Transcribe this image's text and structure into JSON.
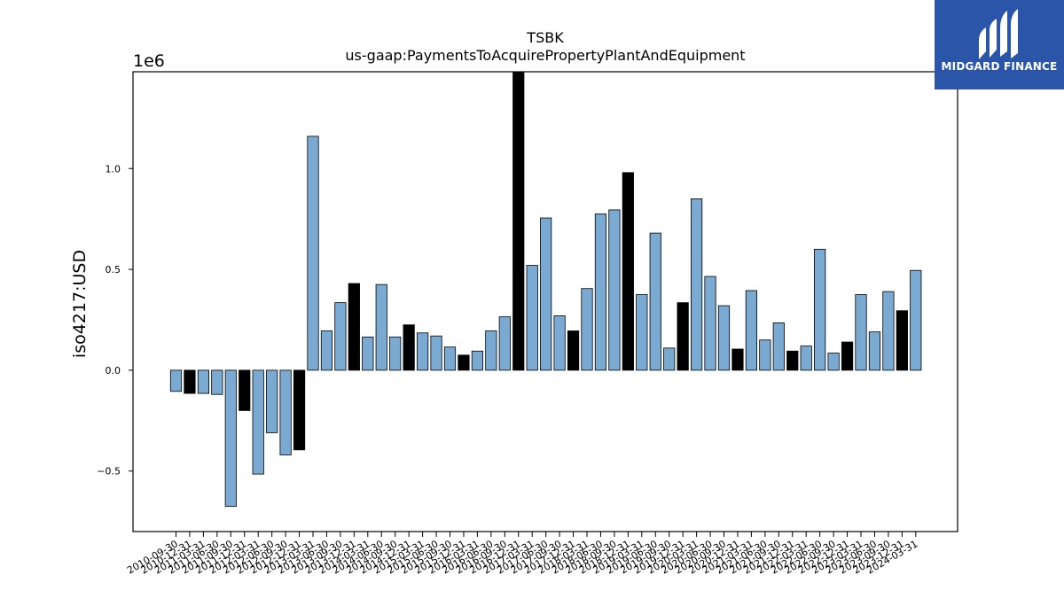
{
  "chart_data": {
    "type": "bar",
    "title": "TSBK",
    "subtitle": "us-gaap:PaymentsToAcquirePropertyPlantAndEquipment",
    "ylabel": "iso4217:USD",
    "xlabel": "",
    "scale_label": "1e6",
    "ylim": [
      -0.8,
      1.48
    ],
    "yticks": [
      -0.5,
      0.0,
      0.5,
      1.0
    ],
    "ytick_labels": [
      "−0.5",
      "0.0",
      "0.5",
      "1.0"
    ],
    "grid": false,
    "colors": {
      "annual": "#000000",
      "quarterly": "#7aaad2"
    },
    "categories": [
      "2010-09-30",
      "2010-12-31",
      "2011-03-31",
      "2011-06-30",
      "2011-09-30",
      "2011-12-31",
      "2012-03-31",
      "2012-06-30",
      "2012-09-30",
      "2012-12-31",
      "2013-03-31",
      "2013-06-30",
      "2013-09-30",
      "2013-12-31",
      "2014-03-31",
      "2014-06-30",
      "2014-09-30",
      "2014-12-31",
      "2015-03-31",
      "2015-06-30",
      "2015-09-30",
      "2015-12-31",
      "2016-03-31",
      "2016-06-30",
      "2016-09-30",
      "2016-12-31",
      "2017-03-31",
      "2017-06-30",
      "2017-09-30",
      "2017-12-31",
      "2018-03-31",
      "2018-06-30",
      "2018-09-30",
      "2018-12-31",
      "2019-03-31",
      "2019-06-30",
      "2019-09-30",
      "2019-12-31",
      "2020-03-31",
      "2020-06-30",
      "2020-09-30",
      "2020-12-31",
      "2021-03-31",
      "2021-06-30",
      "2021-09-30",
      "2021-12-31",
      "2022-03-31",
      "2022-06-30",
      "2022-09-30",
      "2022-12-31",
      "2023-03-31",
      "2023-06-30",
      "2023-09-30",
      "2023-12-31",
      "2024-03-31"
    ],
    "bars": [
      {
        "value": -0.105,
        "annual": false
      },
      {
        "value": -0.115,
        "annual": true
      },
      {
        "value": -0.115,
        "annual": false
      },
      {
        "value": -0.12,
        "annual": false
      },
      {
        "value": -0.675,
        "annual": false
      },
      {
        "value": -0.2,
        "annual": true
      },
      {
        "value": -0.515,
        "annual": false
      },
      {
        "value": -0.31,
        "annual": false
      },
      {
        "value": -0.42,
        "annual": false
      },
      {
        "value": -0.395,
        "annual": true
      },
      {
        "value": 1.16,
        "annual": false
      },
      {
        "value": 0.195,
        "annual": false
      },
      {
        "value": 0.335,
        "annual": false
      },
      {
        "value": 0.43,
        "annual": true
      },
      {
        "value": 0.165,
        "annual": false
      },
      {
        "value": 0.425,
        "annual": false
      },
      {
        "value": 0.165,
        "annual": false
      },
      {
        "value": 0.225,
        "annual": true
      },
      {
        "value": 0.185,
        "annual": false
      },
      {
        "value": 0.17,
        "annual": false
      },
      {
        "value": 0.115,
        "annual": false
      },
      {
        "value": 0.075,
        "annual": true
      },
      {
        "value": 0.095,
        "annual": false
      },
      {
        "value": 0.195,
        "annual": false
      },
      {
        "value": 0.265,
        "annual": false
      },
      {
        "value": 1.5,
        "annual": true
      },
      {
        "value": 0.52,
        "annual": false
      },
      {
        "value": 0.755,
        "annual": false
      },
      {
        "value": 0.27,
        "annual": false
      },
      {
        "value": 0.195,
        "annual": true
      },
      {
        "value": 0.405,
        "annual": false
      },
      {
        "value": 0.775,
        "annual": false
      },
      {
        "value": 0.795,
        "annual": false
      },
      {
        "value": 0.98,
        "annual": true
      },
      {
        "value": 0.375,
        "annual": false
      },
      {
        "value": 0.68,
        "annual": false
      },
      {
        "value": 0.11,
        "annual": false
      },
      {
        "value": 0.335,
        "annual": true
      },
      {
        "value": 0.85,
        "annual": false
      },
      {
        "value": 0.465,
        "annual": false
      },
      {
        "value": 0.32,
        "annual": false
      },
      {
        "value": 0.105,
        "annual": true
      },
      {
        "value": 0.395,
        "annual": false
      },
      {
        "value": 0.15,
        "annual": false
      },
      {
        "value": 0.235,
        "annual": false
      },
      {
        "value": 0.095,
        "annual": true
      },
      {
        "value": 0.12,
        "annual": false
      },
      {
        "value": 0.6,
        "annual": false
      },
      {
        "value": 0.085,
        "annual": false
      },
      {
        "value": 0.14,
        "annual": true
      },
      {
        "value": 0.375,
        "annual": false
      },
      {
        "value": 0.19,
        "annual": false
      },
      {
        "value": 0.39,
        "annual": false
      },
      {
        "value": 0.295,
        "annual": true
      },
      {
        "value": 0.495,
        "annual": false
      }
    ]
  },
  "logo": {
    "brand_text": "MIDGARD FINANCE",
    "icon": "midgard-logo-icon"
  }
}
